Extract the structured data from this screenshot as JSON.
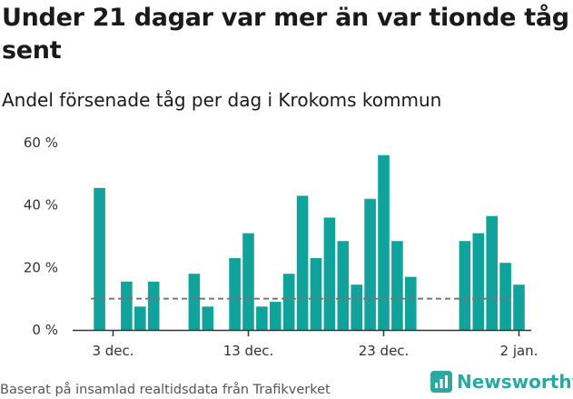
{
  "title": "Under 21 dagar var mer än var tionde tåg sent",
  "subtitle": "Andel försenade tåg per dag i Krokoms kommun",
  "source": "Baserat på insamlad realtidsdata från Trafikverket",
  "brand": {
    "name": "Newsworthy",
    "icon": "newsworthy-logo-icon"
  },
  "colors": {
    "bar": "#0fa39b",
    "reference_line": "#777777",
    "axis": "#333333",
    "brand": "#2aa9a1"
  },
  "chart_data": {
    "type": "bar",
    "title": "Under 21 dagar var mer än var tionde tåg sent",
    "subtitle": "Andel försenade tåg per dag i Krokoms kommun",
    "xlabel": "",
    "ylabel": "",
    "y_unit": "%",
    "ylim": [
      0,
      60
    ],
    "y_ticks": [
      0,
      20,
      40,
      60
    ],
    "y_tick_labels": [
      "0 %",
      "20 %",
      "40 %",
      "60 %"
    ],
    "x_ticks": [
      {
        "date": "2023-12-03",
        "label": "3 dec."
      },
      {
        "date": "2023-12-13",
        "label": "13 dec."
      },
      {
        "date": "2023-12-23",
        "label": "23 dec."
      },
      {
        "date": "2024-01-02",
        "label": "2 jan."
      }
    ],
    "reference_line": 10,
    "grid": false,
    "series": [
      {
        "dates": [
          "2023-12-02",
          "2023-12-04",
          "2023-12-05",
          "2023-12-06",
          "2023-12-09",
          "2023-12-10",
          "2023-12-12",
          "2023-12-13",
          "2023-12-14",
          "2023-12-15",
          "2023-12-16",
          "2023-12-17",
          "2023-12-18",
          "2023-12-19",
          "2023-12-20",
          "2023-12-21",
          "2023-12-22",
          "2023-12-23",
          "2023-12-24",
          "2023-12-25",
          "2023-12-26",
          "2023-12-29",
          "2023-12-30",
          "2023-12-31",
          "2024-01-01",
          "2024-01-02"
        ],
        "values": [
          45.5,
          15.5,
          7.5,
          15.5,
          18,
          7.5,
          23,
          31,
          7.5,
          9,
          18,
          43,
          23,
          36,
          28.5,
          14.5,
          42,
          56,
          28.5,
          17,
          0,
          28.5,
          31,
          36.5,
          21.5,
          14.5
        ]
      }
    ]
  }
}
